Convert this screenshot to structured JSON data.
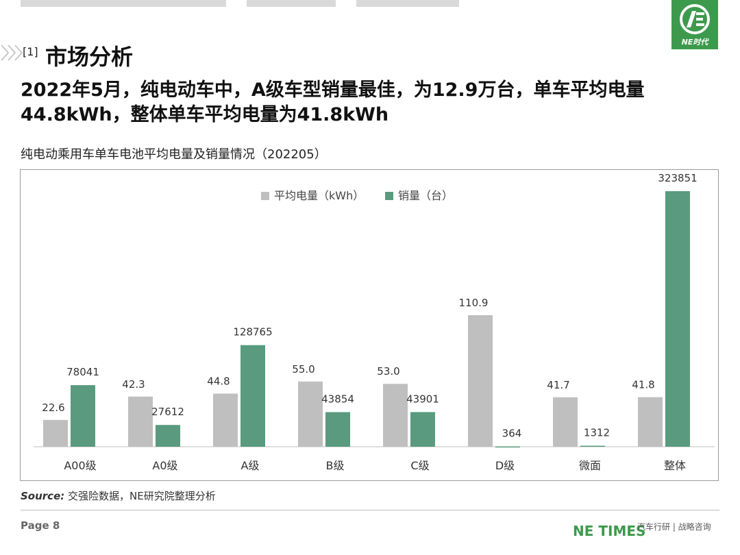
{
  "header": {
    "section_number": "[1]",
    "section_title": "市场分析",
    "logo_text": "NE时代",
    "headline_line1": "2022年5月，纯电动车中，A级车型销量最佳，为12.9万台，单车平均电量",
    "headline_line2": "44.8kWh，整体单车平均电量为41.8kWh"
  },
  "chart_data": {
    "type": "bar",
    "title": "纯电动乘用车单车电池平均电量及销量情况（202205）",
    "categories": [
      "A00级",
      "A0级",
      "A级",
      "B级",
      "C级",
      "D级",
      "微面",
      "整体"
    ],
    "series": [
      {
        "name": "平均电量（kWh）",
        "color": "#bfbfbf",
        "values": [
          22.6,
          42.3,
          44.8,
          55.0,
          53.0,
          110.9,
          41.7,
          41.8
        ],
        "labels": [
          "22.6",
          "42.3",
          "44.8",
          "55.0",
          "53.0",
          "110.9",
          "41.7",
          "41.8"
        ]
      },
      {
        "name": "销量（台）",
        "color": "#5a9a7e",
        "values": [
          78041,
          27612,
          128765,
          43854,
          43901,
          364,
          1312,
          323851
        ],
        "labels": [
          "78041",
          "27612",
          "128765",
          "43854",
          "43901",
          "364",
          "1312",
          "323851"
        ]
      }
    ],
    "legend_position": "top",
    "grid": false
  },
  "footer": {
    "source_label": "Source:",
    "source_text": " 交强险数据，NE研究院整理分析",
    "page": "Page 8",
    "brand": "NE TIMES",
    "tagline": "汽车行研 | 战略咨询"
  }
}
